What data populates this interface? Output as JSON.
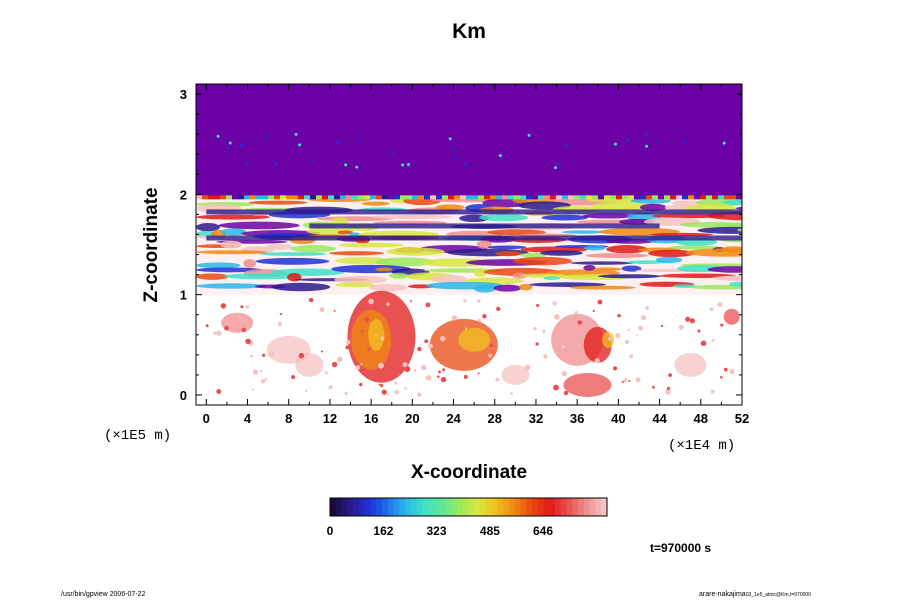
{
  "chart_data": {
    "type": "heatmap",
    "title": "Km",
    "xlabel": "X-coordinate",
    "ylabel": "Z-coordinate",
    "x_scale_label": "(×1E4 m)",
    "y_scale_label": "(×1E5 m)",
    "xlim": [
      -1,
      52
    ],
    "ylim": [
      -0.1,
      3.1
    ],
    "x_ticks": [
      "0",
      "4",
      "8",
      "12",
      "16",
      "20",
      "24",
      "28",
      "32",
      "36",
      "40",
      "44",
      "48",
      "52"
    ],
    "y_ticks": [
      "0",
      "1",
      "2",
      "3"
    ],
    "colorbar": {
      "min": 0,
      "max": 840,
      "tick_labels": [
        "0",
        "162",
        "323",
        "485",
        "646"
      ],
      "colormap": [
        "#1b0b3c",
        "#2a1a8c",
        "#1f2fd6",
        "#1f6fe8",
        "#29b7e8",
        "#3ee0c8",
        "#5ce89a",
        "#9be85c",
        "#d6e840",
        "#f0c020",
        "#f08a10",
        "#e84a10",
        "#e01818",
        "#e85050",
        "#f08e8e",
        "#f6c2c2"
      ]
    },
    "field": {
      "top_value_color": "#6a02a6",
      "regions": [
        {
          "z_range": [
            2.0,
            3.1
          ],
          "value": "uniform low (purple) with scattered isolated points"
        },
        {
          "z_range": [
            1.0,
            2.0
          ],
          "value": "turbulent layer with mixed high and low values"
        },
        {
          "z_range": [
            -0.1,
            1.0
          ],
          "value": "scattered high-value (red) plumes"
        }
      ]
    }
  },
  "annotations": {
    "time_label": "t=970000 s",
    "footer_left": "/usr/bin/gpview 2006-07-22",
    "footer_right": "arare-nakajima",
    "footer_right_sub": "03_1e5_atmc@Km,t=970000"
  }
}
